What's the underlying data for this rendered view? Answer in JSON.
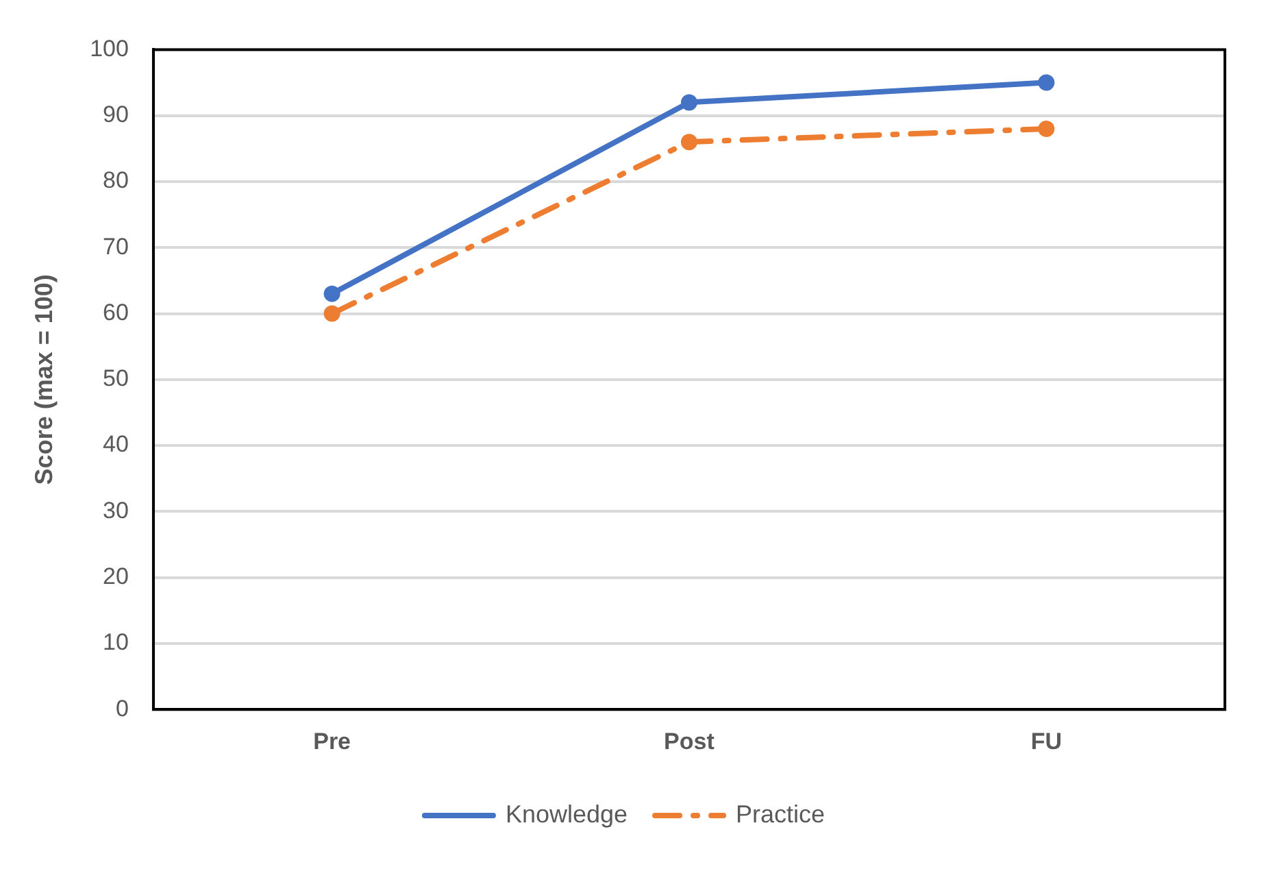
{
  "chart_data": {
    "type": "line",
    "ylabel": "Score (max = 100)",
    "categories": [
      "Pre",
      "Post",
      "FU"
    ],
    "series": [
      {
        "name": "Knowledge",
        "color": "#4472c4",
        "values": [
          63,
          92,
          95
        ],
        "line_style": "solid"
      },
      {
        "name": "Practice",
        "color": "#ed7d31",
        "values": [
          60,
          86,
          88
        ],
        "line_style": "dashed"
      }
    ],
    "ylim": [
      0,
      100
    ],
    "yticks": [
      0,
      10,
      20,
      30,
      40,
      50,
      60,
      70,
      80,
      90,
      100
    ],
    "grid": "y",
    "legend": "bottom",
    "marker": "circle"
  }
}
